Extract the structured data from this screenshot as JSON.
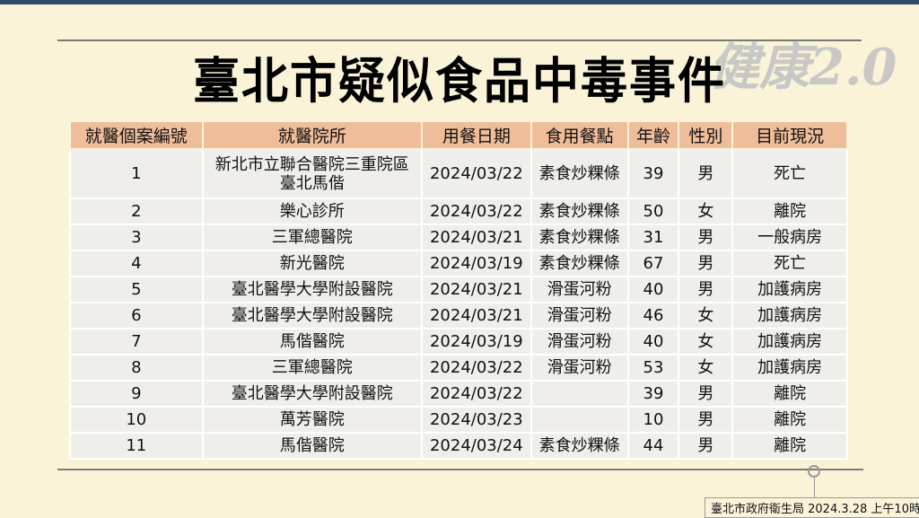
{
  "title": "臺北市疑似食品中毒事件",
  "watermark": "健康2.0",
  "table": {
    "headers": [
      "就醫個案編號",
      "就醫院所",
      "用餐日期",
      "食用餐點",
      "年齡",
      "性別",
      "目前現況"
    ],
    "rows": [
      [
        "1",
        "新北市立聯合醫院三重院區\n臺北馬偕",
        "2024/03/22",
        "素食炒粿條",
        "39",
        "男",
        "死亡"
      ],
      [
        "2",
        "樂心診所",
        "2024/03/22",
        "素食炒粿條",
        "50",
        "女",
        "離院"
      ],
      [
        "3",
        "三軍總醫院",
        "2024/03/21",
        "素食炒粿條",
        "31",
        "男",
        "一般病房"
      ],
      [
        "4",
        "新光醫院",
        "2024/03/19",
        "素食炒粿條",
        "67",
        "男",
        "死亡"
      ],
      [
        "5",
        "臺北醫學大學附設醫院",
        "2024/03/21",
        "滑蛋河粉",
        "40",
        "男",
        "加護病房"
      ],
      [
        "6",
        "臺北醫學大學附設醫院",
        "2024/03/21",
        "滑蛋河粉",
        "46",
        "女",
        "加護病房"
      ],
      [
        "7",
        "馬偕醫院",
        "2024/03/19",
        "滑蛋河粉",
        "40",
        "女",
        "加護病房"
      ],
      [
        "8",
        "三軍總醫院",
        "2024/03/22",
        "滑蛋河粉",
        "53",
        "女",
        "加護病房"
      ],
      [
        "9",
        "臺北醫學大學附設醫院",
        "2024/03/22",
        "",
        "39",
        "男",
        "離院"
      ],
      [
        "10",
        "萬芳醫院",
        "2024/03/23",
        "",
        "10",
        "男",
        "離院"
      ],
      [
        "11",
        "馬偕醫院",
        "2024/03/24",
        "素食炒粿條",
        "44",
        "男",
        "離院"
      ]
    ]
  },
  "footer": "臺北市政府衛生局 2024.3.28 上午10時"
}
